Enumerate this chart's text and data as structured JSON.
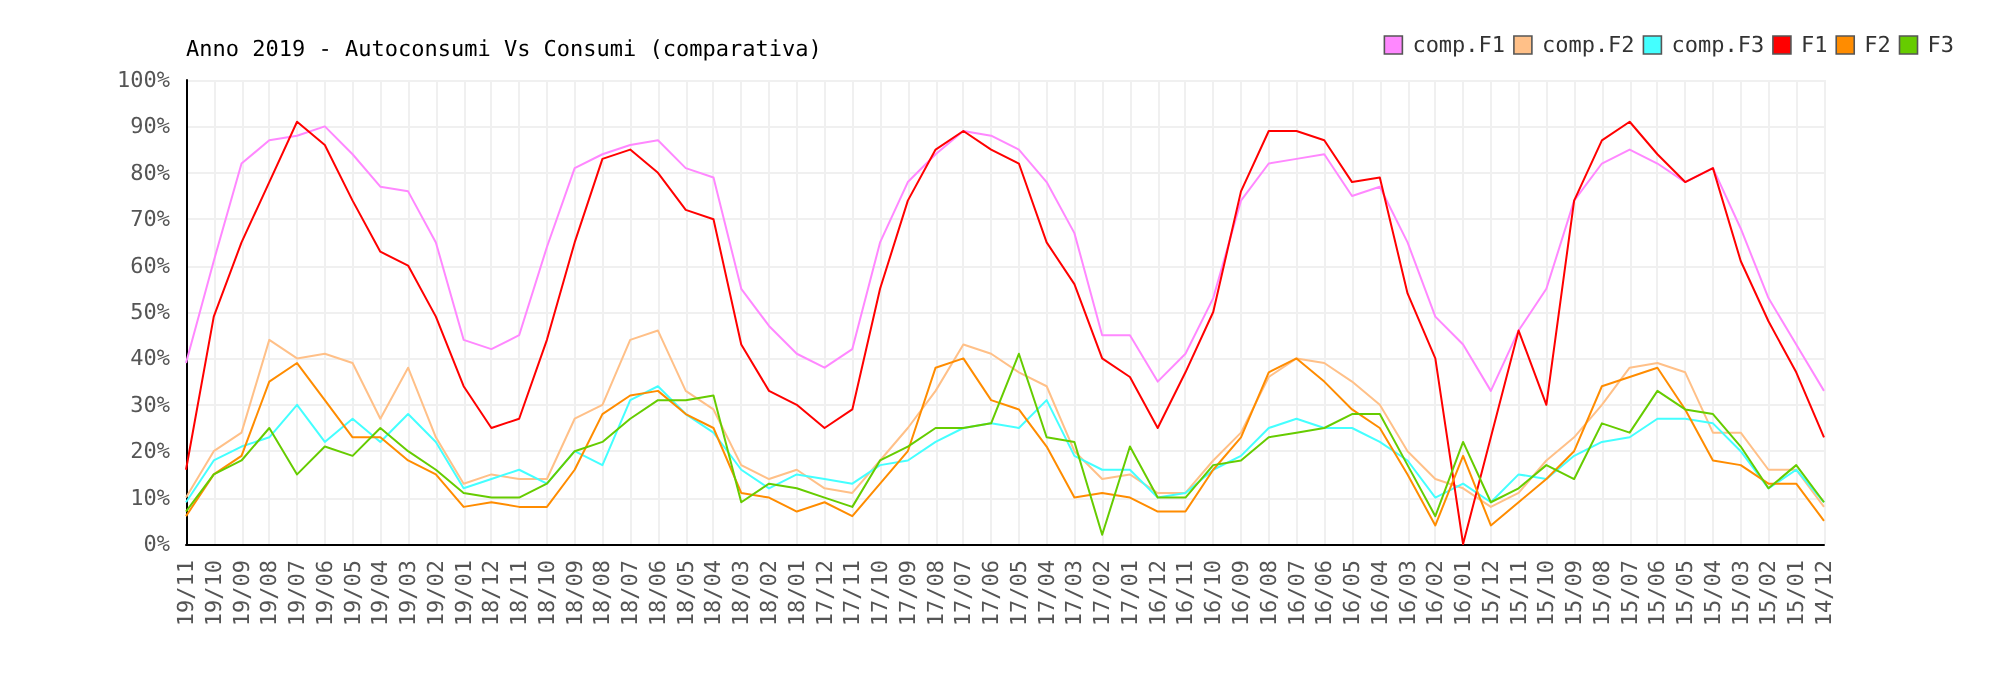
{
  "chart_data": {
    "type": "line",
    "title": "Anno 2019 - Autoconsumi Vs Consumi (comparativa)",
    "categories": [
      "19/11",
      "19/10",
      "19/09",
      "19/08",
      "19/07",
      "19/06",
      "19/05",
      "19/04",
      "19/03",
      "19/02",
      "19/01",
      "18/12",
      "18/11",
      "18/10",
      "18/09",
      "18/08",
      "18/07",
      "18/06",
      "18/05",
      "18/04",
      "18/03",
      "18/02",
      "18/01",
      "17/12",
      "17/11",
      "17/10",
      "17/09",
      "17/08",
      "17/07",
      "17/06",
      "17/05",
      "17/04",
      "17/03",
      "17/02",
      "17/01",
      "16/12",
      "16/11",
      "16/10",
      "16/09",
      "16/08",
      "16/07",
      "16/06",
      "16/05",
      "16/04",
      "16/03",
      "16/02",
      "16/01",
      "15/12",
      "15/11",
      "15/10",
      "15/09",
      "15/08",
      "15/07",
      "15/06",
      "15/05",
      "15/04",
      "15/03",
      "15/02",
      "15/01",
      "14/12"
    ],
    "series": [
      {
        "name": "comp.F1",
        "color": "#ff88ff",
        "values": [
          39,
          61,
          82,
          87,
          88,
          90,
          84,
          77,
          76,
          65,
          44,
          42,
          45,
          64,
          81,
          84,
          86,
          87,
          81,
          79,
          55,
          47,
          41,
          38,
          42,
          65,
          78,
          84,
          89,
          88,
          85,
          78,
          67,
          45,
          45,
          35,
          41,
          53,
          74,
          82,
          83,
          84,
          75,
          77,
          65,
          49,
          43,
          33,
          46,
          55,
          74,
          82,
          85,
          82,
          78,
          81,
          68,
          53,
          43,
          33
        ]
      },
      {
        "name": "comp.F2",
        "color": "#ffc088",
        "values": [
          10,
          20,
          24,
          44,
          40,
          41,
          39,
          27,
          38,
          23,
          13,
          15,
          14,
          14,
          27,
          30,
          44,
          46,
          33,
          29,
          17,
          14,
          16,
          12,
          11,
          18,
          25,
          33,
          43,
          41,
          37,
          34,
          20,
          14,
          15,
          11,
          11,
          18,
          24,
          36,
          40,
          39,
          35,
          30,
          20,
          14,
          12,
          8,
          11,
          18,
          23,
          30,
          38,
          39,
          37,
          24,
          24,
          16,
          16,
          8
        ]
      },
      {
        "name": "comp.F3",
        "color": "#44ffff",
        "values": [
          9,
          18,
          21,
          23,
          30,
          22,
          27,
          22,
          28,
          22,
          12,
          14,
          16,
          13,
          20,
          17,
          31,
          34,
          28,
          24,
          16,
          12,
          15,
          14,
          13,
          17,
          18,
          22,
          25,
          26,
          25,
          31,
          19,
          16,
          16,
          10,
          11,
          16,
          19,
          25,
          27,
          25,
          25,
          22,
          18,
          10,
          13,
          9,
          15,
          14,
          19,
          22,
          23,
          27,
          27,
          26,
          20,
          12,
          16,
          9
        ]
      },
      {
        "name": "F1",
        "color": "#ff0000",
        "values": [
          16,
          49,
          65,
          78,
          91,
          86,
          74,
          63,
          60,
          49,
          34,
          25,
          27,
          44,
          65,
          83,
          85,
          80,
          72,
          70,
          43,
          33,
          30,
          25,
          29,
          55,
          74,
          85,
          89,
          85,
          82,
          65,
          56,
          40,
          36,
          25,
          37,
          50,
          76,
          89,
          89,
          87,
          78,
          79,
          54,
          40,
          0,
          23,
          46,
          30,
          74,
          87,
          91,
          84,
          78,
          81,
          61,
          48,
          37,
          23
        ]
      },
      {
        "name": "F2",
        "color": "#ff8c00",
        "values": [
          6,
          15,
          19,
          35,
          39,
          31,
          23,
          23,
          18,
          15,
          8,
          9,
          8,
          8,
          16,
          28,
          32,
          33,
          28,
          25,
          11,
          10,
          7,
          9,
          6,
          13,
          20,
          38,
          40,
          31,
          29,
          21,
          10,
          11,
          10,
          7,
          7,
          16,
          23,
          37,
          40,
          35,
          29,
          25,
          15,
          4,
          19,
          4,
          9,
          14,
          20,
          34,
          36,
          38,
          29,
          18,
          17,
          13,
          13,
          5
        ]
      },
      {
        "name": "F3",
        "color": "#66cc00",
        "values": [
          7,
          15,
          18,
          25,
          15,
          21,
          19,
          25,
          20,
          16,
          11,
          10,
          10,
          13,
          20,
          22,
          27,
          31,
          31,
          32,
          9,
          13,
          12,
          10,
          8,
          18,
          21,
          25,
          25,
          26,
          41,
          23,
          22,
          2,
          21,
          10,
          10,
          17,
          18,
          23,
          24,
          25,
          28,
          28,
          17,
          6,
          22,
          9,
          12,
          17,
          14,
          26,
          24,
          33,
          29,
          28,
          21,
          12,
          17,
          9
        ]
      }
    ],
    "ylim": [
      0,
      100
    ],
    "yticks": [
      {
        "value": 0,
        "label": "0%"
      },
      {
        "value": 10,
        "label": "10%"
      },
      {
        "value": 20,
        "label": "20%"
      },
      {
        "value": 30,
        "label": "30%"
      },
      {
        "value": 40,
        "label": "40%"
      },
      {
        "value": 50,
        "label": "50%"
      },
      {
        "value": 60,
        "label": "60%"
      },
      {
        "value": 70,
        "label": "70%"
      },
      {
        "value": 80,
        "label": "80%"
      },
      {
        "value": 90,
        "label": "90%"
      },
      {
        "value": 100,
        "label": "100%"
      }
    ],
    "grid": true,
    "legend": "top right",
    "marker": "none",
    "line_style": "solid"
  }
}
